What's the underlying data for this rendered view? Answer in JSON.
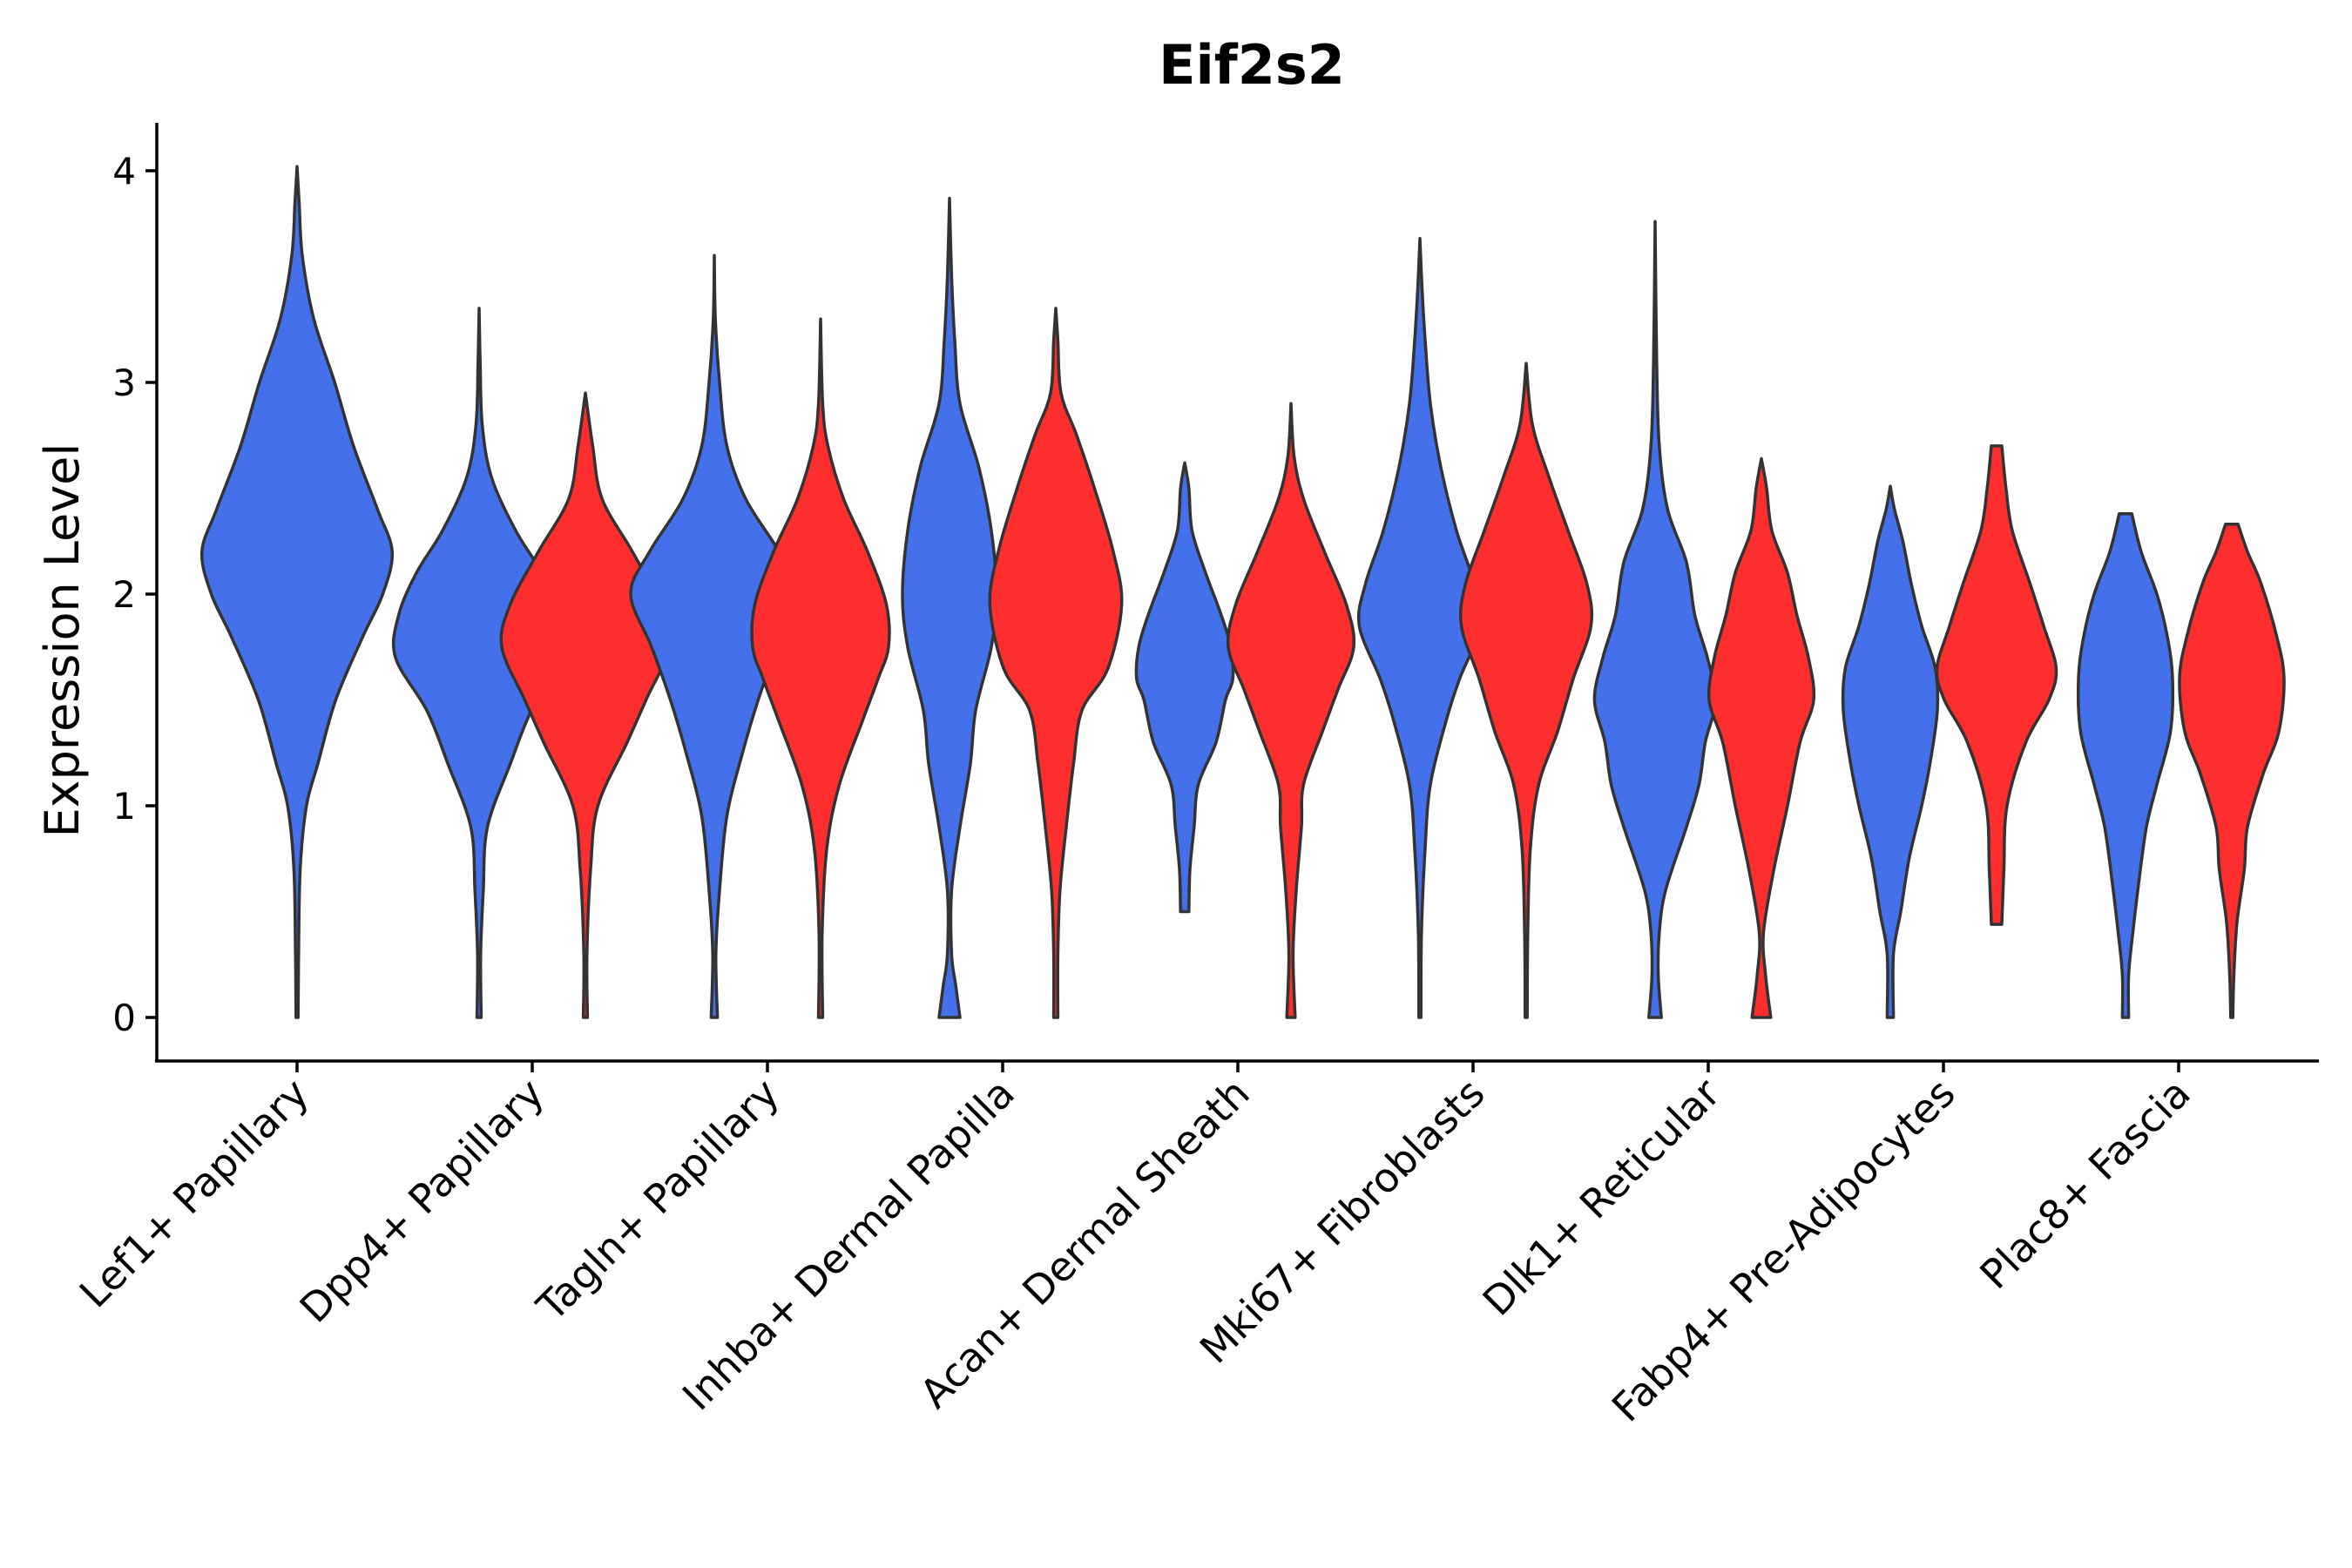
{
  "chart_data": {
    "type": "violin",
    "title": "Eif2s2",
    "xlabel": "",
    "ylabel": "Expression Level",
    "ylim": [
      -0.2,
      4.2
    ],
    "yticks": [
      0,
      1,
      2,
      3,
      4
    ],
    "colors": {
      "blue": "#4470ec",
      "red": "#ff2e2e"
    },
    "categories": [
      "Lef1+ Papillary",
      "Dpp4+ Papillary",
      "Tagln+ Papillary",
      "Inhba+ Dermal Papilla",
      "Acan+ Dermal Sheath",
      "Mki67+ Fibroblasts",
      "Dlk1+ Reticular",
      "Fabp4+ Pre-Adipocytes",
      "Plac8+ Fascia"
    ],
    "violins": [
      {
        "category": "Lef1+ Papillary",
        "group": "blue",
        "halfwidth": 0.45,
        "profile": [
          [
            0,
            0.01
          ],
          [
            0.3,
            0.015
          ],
          [
            0.7,
            0.03
          ],
          [
            1.0,
            0.09
          ],
          [
            1.2,
            0.2
          ],
          [
            1.5,
            0.37
          ],
          [
            1.8,
            0.63
          ],
          [
            2.0,
            0.82
          ],
          [
            2.2,
            0.91
          ],
          [
            2.4,
            0.77
          ],
          [
            2.7,
            0.54
          ],
          [
            3.0,
            0.36
          ],
          [
            3.3,
            0.16
          ],
          [
            3.6,
            0.05
          ],
          [
            3.85,
            0.02
          ],
          [
            4.02,
            0.0
          ]
        ]
      },
      {
        "category": "Dpp4+ Papillary",
        "group": "blue",
        "halfwidth": 0.45,
        "profile": [
          [
            0,
            0.02
          ],
          [
            0.3,
            0.015
          ],
          [
            0.6,
            0.04
          ],
          [
            0.9,
            0.08
          ],
          [
            1.2,
            0.3
          ],
          [
            1.45,
            0.5
          ],
          [
            1.7,
            0.8
          ],
          [
            1.9,
            0.77
          ],
          [
            2.1,
            0.6
          ],
          [
            2.3,
            0.35
          ],
          [
            2.55,
            0.12
          ],
          [
            2.8,
            0.03
          ],
          [
            3.1,
            0.01
          ],
          [
            3.35,
            0.0
          ]
        ]
      },
      {
        "category": "Dpp4+ Papillary",
        "group": "red",
        "halfwidth": 0.45,
        "profile": [
          [
            0,
            0.02
          ],
          [
            0.3,
            0.015
          ],
          [
            0.7,
            0.05
          ],
          [
            1.0,
            0.12
          ],
          [
            1.3,
            0.4
          ],
          [
            1.5,
            0.58
          ],
          [
            1.75,
            0.8
          ],
          [
            1.95,
            0.72
          ],
          [
            2.2,
            0.45
          ],
          [
            2.45,
            0.16
          ],
          [
            2.7,
            0.07
          ],
          [
            2.95,
            0.0
          ]
        ]
      },
      {
        "category": "Tagln+ Papillary",
        "group": "blue",
        "halfwidth": 0.45,
        "profile": [
          [
            0,
            0.03
          ],
          [
            0.3,
            0.015
          ],
          [
            0.6,
            0.05
          ],
          [
            0.95,
            0.12
          ],
          [
            1.25,
            0.27
          ],
          [
            1.5,
            0.42
          ],
          [
            1.75,
            0.6
          ],
          [
            2.0,
            0.8
          ],
          [
            2.2,
            0.62
          ],
          [
            2.45,
            0.3
          ],
          [
            2.7,
            0.12
          ],
          [
            3.0,
            0.05
          ],
          [
            3.3,
            0.01
          ],
          [
            3.6,
            0.0
          ]
        ]
      },
      {
        "category": "Tagln+ Papillary",
        "group": "red",
        "halfwidth": 0.45,
        "profile": [
          [
            0,
            0.02
          ],
          [
            0.4,
            0.015
          ],
          [
            0.8,
            0.06
          ],
          [
            1.1,
            0.18
          ],
          [
            1.4,
            0.4
          ],
          [
            1.6,
            0.55
          ],
          [
            1.75,
            0.65
          ],
          [
            1.95,
            0.63
          ],
          [
            2.2,
            0.45
          ],
          [
            2.45,
            0.22
          ],
          [
            2.7,
            0.07
          ],
          [
            2.9,
            0.02
          ],
          [
            3.3,
            0.0
          ]
        ]
      },
      {
        "category": "Inhba+ Dermal Papilla",
        "group": "blue",
        "halfwidth": 0.45,
        "profile": [
          [
            0,
            0.1
          ],
          [
            0.15,
            0.06
          ],
          [
            0.3,
            0.02
          ],
          [
            0.6,
            0.02
          ],
          [
            0.9,
            0.1
          ],
          [
            1.2,
            0.2
          ],
          [
            1.45,
            0.25
          ],
          [
            1.75,
            0.4
          ],
          [
            2.0,
            0.45
          ],
          [
            2.3,
            0.4
          ],
          [
            2.6,
            0.28
          ],
          [
            2.9,
            0.1
          ],
          [
            3.2,
            0.05
          ],
          [
            3.5,
            0.02
          ],
          [
            3.87,
            0.0
          ]
        ]
      },
      {
        "category": "Inhba+ Dermal Papilla",
        "group": "red",
        "halfwidth": 0.45,
        "profile": [
          [
            0,
            0.02
          ],
          [
            0.3,
            0.02
          ],
          [
            0.6,
            0.04
          ],
          [
            0.9,
            0.1
          ],
          [
            1.2,
            0.17
          ],
          [
            1.45,
            0.25
          ],
          [
            1.65,
            0.5
          ],
          [
            1.95,
            0.63
          ],
          [
            2.2,
            0.55
          ],
          [
            2.5,
            0.37
          ],
          [
            2.75,
            0.2
          ],
          [
            2.95,
            0.05
          ],
          [
            3.2,
            0.02
          ],
          [
            3.35,
            0.0
          ]
        ]
      },
      {
        "category": "Acan+ Dermal Sheath",
        "group": "blue",
        "halfwidth": 0.45,
        "profile": [
          [
            0.5,
            0.04
          ],
          [
            0.7,
            0.05
          ],
          [
            0.9,
            0.09
          ],
          [
            1.1,
            0.13
          ],
          [
            1.3,
            0.3
          ],
          [
            1.5,
            0.39
          ],
          [
            1.6,
            0.46
          ],
          [
            1.75,
            0.44
          ],
          [
            1.9,
            0.35
          ],
          [
            2.1,
            0.2
          ],
          [
            2.3,
            0.07
          ],
          [
            2.5,
            0.04
          ],
          [
            2.62,
            0.0
          ]
        ]
      },
      {
        "category": "Acan+ Dermal Sheath",
        "group": "red",
        "halfwidth": 0.45,
        "profile": [
          [
            0,
            0.04
          ],
          [
            0.3,
            0.02
          ],
          [
            0.6,
            0.05
          ],
          [
            0.9,
            0.1
          ],
          [
            1.1,
            0.12
          ],
          [
            1.35,
            0.3
          ],
          [
            1.55,
            0.45
          ],
          [
            1.75,
            0.6
          ],
          [
            1.95,
            0.53
          ],
          [
            2.2,
            0.32
          ],
          [
            2.45,
            0.12
          ],
          [
            2.65,
            0.03
          ],
          [
            2.9,
            0.0
          ]
        ]
      },
      {
        "category": "Mki67+ Fibroblasts",
        "group": "blue",
        "halfwidth": 0.45,
        "profile": [
          [
            0,
            0.01
          ],
          [
            0.4,
            0.015
          ],
          [
            0.8,
            0.05
          ],
          [
            1.1,
            0.1
          ],
          [
            1.4,
            0.25
          ],
          [
            1.6,
            0.38
          ],
          [
            1.85,
            0.58
          ],
          [
            2.05,
            0.52
          ],
          [
            2.3,
            0.35
          ],
          [
            2.6,
            0.2
          ],
          [
            2.9,
            0.1
          ],
          [
            3.2,
            0.05
          ],
          [
            3.45,
            0.02
          ],
          [
            3.68,
            0.0
          ]
        ]
      },
      {
        "category": "Mki67+ Fibroblasts",
        "group": "red",
        "halfwidth": 0.45,
        "profile": [
          [
            0,
            0.01
          ],
          [
            0.4,
            0.015
          ],
          [
            0.8,
            0.04
          ],
          [
            1.1,
            0.12
          ],
          [
            1.35,
            0.3
          ],
          [
            1.6,
            0.45
          ],
          [
            1.85,
            0.62
          ],
          [
            2.05,
            0.58
          ],
          [
            2.3,
            0.4
          ],
          [
            2.55,
            0.22
          ],
          [
            2.8,
            0.06
          ],
          [
            3.09,
            0.0
          ]
        ]
      },
      {
        "category": "Dlk1+ Reticular",
        "group": "blue",
        "halfwidth": 0.45,
        "profile": [
          [
            0,
            0.06
          ],
          [
            0.2,
            0.03
          ],
          [
            0.4,
            0.04
          ],
          [
            0.6,
            0.1
          ],
          [
            0.9,
            0.3
          ],
          [
            1.1,
            0.42
          ],
          [
            1.3,
            0.48
          ],
          [
            1.5,
            0.58
          ],
          [
            1.7,
            0.5
          ],
          [
            1.9,
            0.38
          ],
          [
            2.15,
            0.3
          ],
          [
            2.4,
            0.12
          ],
          [
            2.7,
            0.04
          ],
          [
            3.1,
            0.015
          ],
          [
            3.76,
            0.0
          ]
        ]
      },
      {
        "category": "Dlk1+ Reticular",
        "group": "red",
        "halfwidth": 0.45,
        "profile": [
          [
            0,
            0.09
          ],
          [
            0.2,
            0.04
          ],
          [
            0.4,
            0.02
          ],
          [
            0.7,
            0.12
          ],
          [
            1.0,
            0.25
          ],
          [
            1.3,
            0.37
          ],
          [
            1.5,
            0.5
          ],
          [
            1.7,
            0.45
          ],
          [
            1.9,
            0.34
          ],
          [
            2.1,
            0.25
          ],
          [
            2.3,
            0.1
          ],
          [
            2.5,
            0.05
          ],
          [
            2.64,
            0.0
          ]
        ]
      },
      {
        "category": "Fabp4+ Pre-Adipocytes",
        "group": "blue",
        "halfwidth": 0.45,
        "profile": [
          [
            0,
            0.03
          ],
          [
            0.3,
            0.03
          ],
          [
            0.5,
            0.1
          ],
          [
            0.75,
            0.18
          ],
          [
            1.0,
            0.3
          ],
          [
            1.2,
            0.38
          ],
          [
            1.45,
            0.45
          ],
          [
            1.65,
            0.43
          ],
          [
            1.85,
            0.3
          ],
          [
            2.05,
            0.2
          ],
          [
            2.25,
            0.12
          ],
          [
            2.4,
            0.04
          ],
          [
            2.51,
            0.0
          ]
        ]
      },
      {
        "category": "Fabp4+ Pre-Adipocytes",
        "group": "red",
        "halfwidth": 0.45,
        "profile": [
          [
            0.44,
            0.05
          ],
          [
            0.7,
            0.07
          ],
          [
            1.0,
            0.1
          ],
          [
            1.3,
            0.28
          ],
          [
            1.5,
            0.5
          ],
          [
            1.65,
            0.57
          ],
          [
            1.85,
            0.45
          ],
          [
            2.05,
            0.32
          ],
          [
            2.3,
            0.15
          ],
          [
            2.5,
            0.09
          ],
          [
            2.7,
            0.05
          ]
        ]
      },
      {
        "category": "Plac8+ Fascia",
        "group": "blue",
        "halfwidth": 0.45,
        "profile": [
          [
            0,
            0.03
          ],
          [
            0.2,
            0.03
          ],
          [
            0.4,
            0.07
          ],
          [
            0.65,
            0.13
          ],
          [
            0.9,
            0.2
          ],
          [
            1.1,
            0.3
          ],
          [
            1.35,
            0.43
          ],
          [
            1.6,
            0.45
          ],
          [
            1.8,
            0.4
          ],
          [
            2.0,
            0.3
          ],
          [
            2.2,
            0.15
          ],
          [
            2.38,
            0.06
          ]
        ]
      },
      {
        "category": "Plac8+ Fascia",
        "group": "red",
        "halfwidth": 0.45,
        "profile": [
          [
            0,
            0.01
          ],
          [
            0.2,
            0.02
          ],
          [
            0.45,
            0.05
          ],
          [
            0.7,
            0.12
          ],
          [
            0.9,
            0.15
          ],
          [
            1.15,
            0.3
          ],
          [
            1.35,
            0.45
          ],
          [
            1.6,
            0.5
          ],
          [
            1.8,
            0.43
          ],
          [
            2.05,
            0.28
          ],
          [
            2.2,
            0.15
          ],
          [
            2.33,
            0.06
          ]
        ]
      }
    ]
  }
}
